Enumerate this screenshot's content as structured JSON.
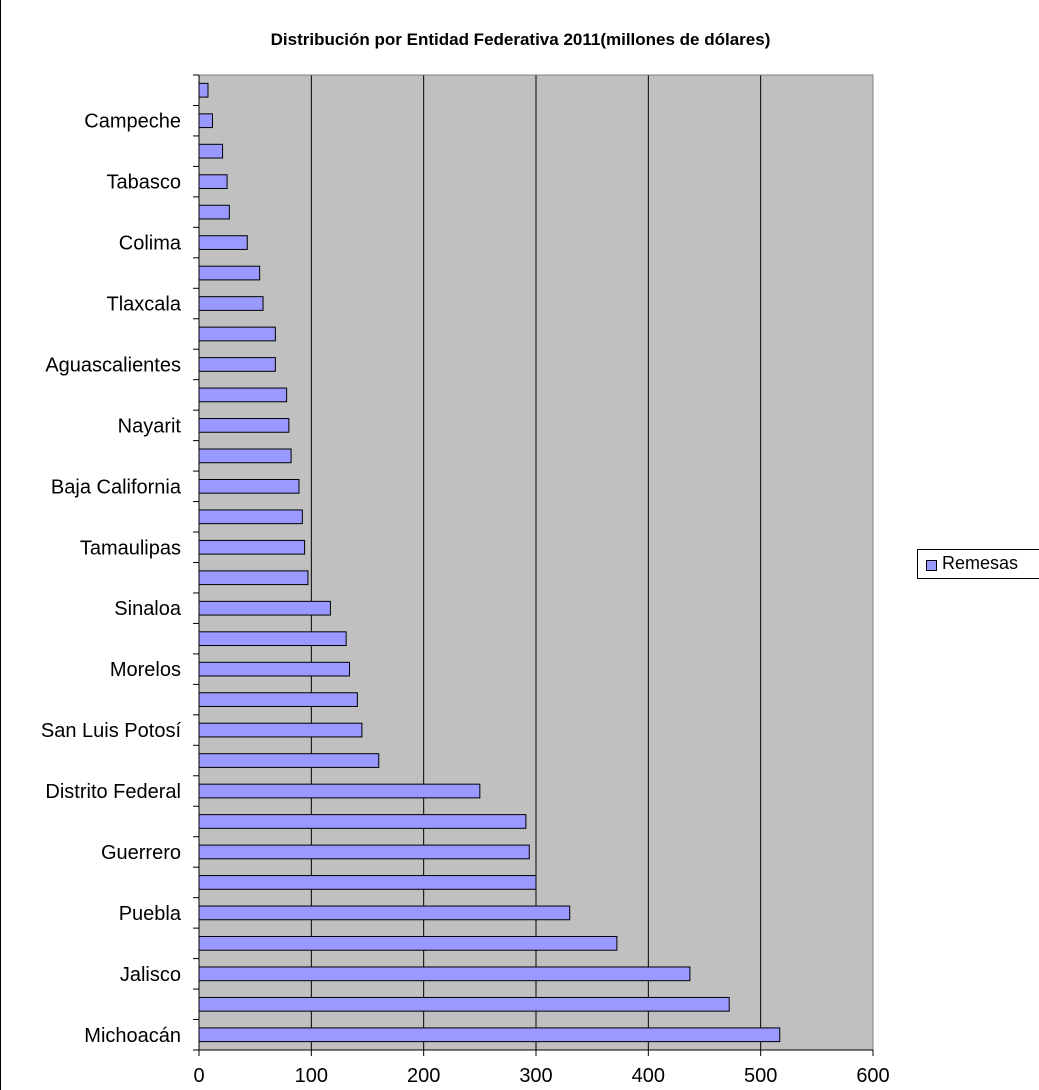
{
  "chart_data": {
    "type": "bar",
    "orientation": "horizontal",
    "title": "Distribución por Entidad Federativa 2011(millones de dólares)",
    "xlabel": "",
    "ylabel": "",
    "xlim": [
      0,
      600
    ],
    "x_ticks": [
      "0",
      "100",
      "200",
      "300",
      "400",
      "500",
      "600"
    ],
    "grid": "vertical major gridlines",
    "plot_background": "#c0c0c0",
    "bar_color": "#9999ff",
    "legend_position": "right",
    "series": [
      {
        "name": "Remesas",
        "values": [
          517,
          472,
          437,
          372,
          330,
          300,
          294,
          291,
          250,
          160,
          145,
          141,
          134,
          131,
          117,
          97,
          94,
          92,
          89,
          82,
          80,
          78,
          68,
          68,
          57,
          54,
          43,
          27,
          25,
          21,
          12,
          8
        ]
      }
    ],
    "categories": [
      "Michoacán",
      "",
      "Jalisco",
      "",
      "Puebla",
      "",
      "Guerrero",
      "",
      "Distrito Federal",
      "",
      "San Luis Potosí",
      "",
      "Morelos",
      "",
      "Sinaloa",
      "",
      "Tamaulipas",
      "",
      "Baja California",
      "",
      "Nayarit",
      "",
      "Aguascalientes",
      "",
      "Tlaxcala",
      "",
      "Colima",
      "",
      "Tabasco",
      "",
      "Campeche",
      ""
    ]
  }
}
